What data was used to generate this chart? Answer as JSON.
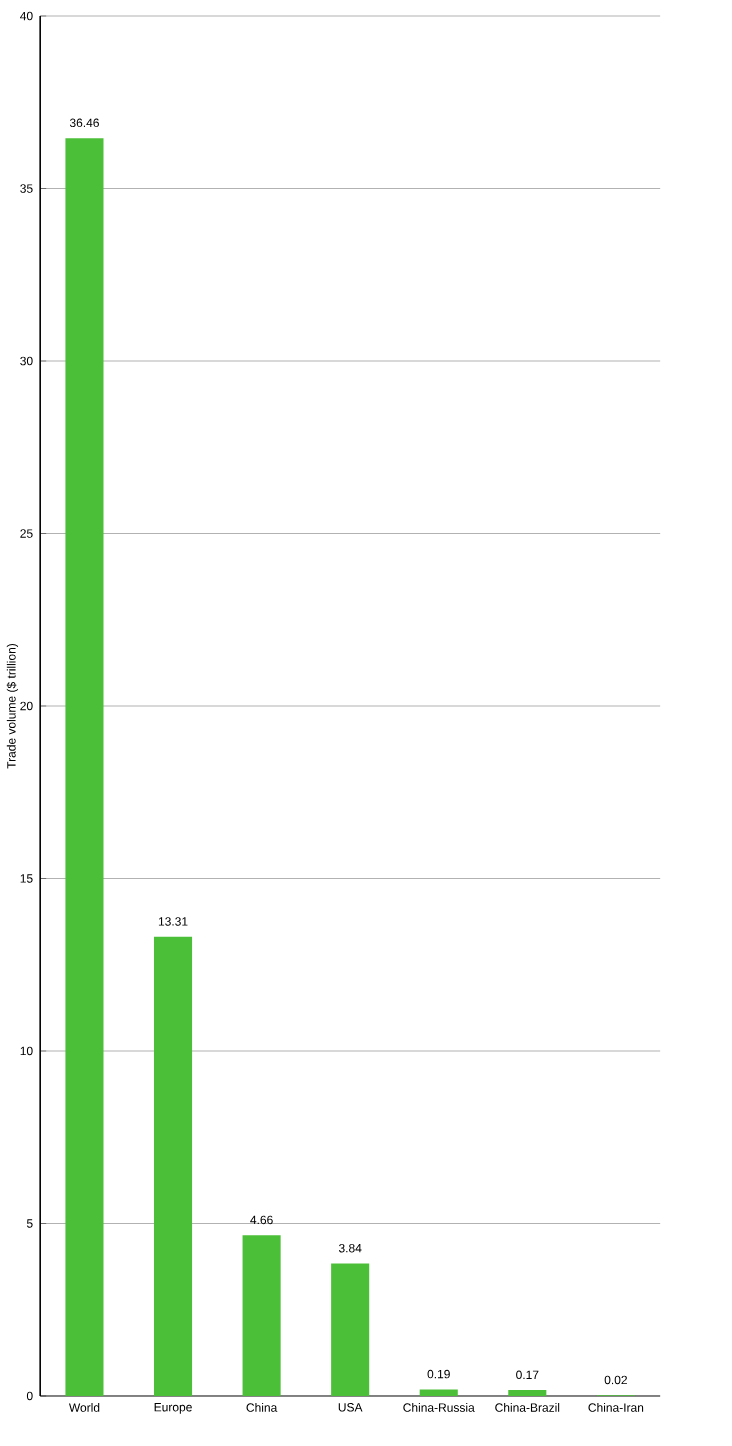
{
  "chart_data": {
    "type": "bar",
    "ylabel": "Trade volume ($ trillion)",
    "categories": [
      "World",
      "Europe",
      "China",
      "USA",
      "China-Russia",
      "China-Brazil",
      "China-Iran"
    ],
    "values": [
      36.46,
      13.31,
      4.66,
      3.84,
      0.19,
      0.17,
      0.02
    ],
    "color": "#4cbf38",
    "ylim": [
      0,
      40
    ],
    "yticks": [
      0,
      5,
      10,
      15,
      20,
      25,
      30,
      35,
      40
    ],
    "grid": "y",
    "data_labels": true
  }
}
